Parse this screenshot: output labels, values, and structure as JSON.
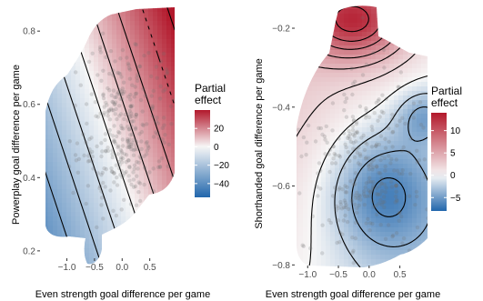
{
  "chart_data": [
    {
      "type": "heatmap",
      "subtype": "contour",
      "xlabel": "Even strength goal difference per game",
      "ylabel": "Powerplay goal difference per game",
      "xticks": [
        -1.0,
        -0.5,
        0.0,
        0.5
      ],
      "xtick_labels": [
        "−1.0",
        "−0.5",
        "0.0",
        "0.5"
      ],
      "yticks": [
        0.2,
        0.4,
        0.6,
        0.8
      ],
      "ytick_labels": [
        "0.2",
        "0.4",
        "0.6",
        "0.8"
      ],
      "xlim": [
        -1.42,
        0.95
      ],
      "ylim": [
        0.155,
        0.865
      ],
      "legend": {
        "title_lines": [
          "Partial",
          "effect"
        ],
        "ticks": [
          20,
          0,
          -20,
          -40
        ],
        "tick_labels": [
          "20",
          "0",
          "−20",
          "−40"
        ],
        "range": [
          -55,
          40
        ],
        "placement": "right"
      },
      "effect_surface": {
        "intercept": 0,
        "x_coef": 45,
        "y_coef": -25
      },
      "contour_levels": [
        -50,
        -40,
        -30,
        -20,
        -10,
        0,
        10,
        20,
        30,
        40
      ],
      "colors": {
        "low": "#2166ac",
        "mid": "#f7f7f7",
        "high": "#b2182b"
      },
      "grid": false,
      "points_visible": true
    },
    {
      "type": "heatmap",
      "subtype": "contour",
      "xlabel": "Even strength goal difference per game",
      "ylabel": "Shorthanded goal difference per game",
      "xticks": [
        -1.0,
        -0.5,
        0.0,
        0.5
      ],
      "xtick_labels": [
        "−1.0",
        "−0.5",
        "0.0",
        "0.5"
      ],
      "yticks": [
        -0.8,
        -0.6,
        -0.4,
        -0.2
      ],
      "ytick_labels": [
        "−0.8",
        "−0.6",
        "−0.4",
        "−0.2"
      ],
      "xlim": [
        -1.3,
        0.95
      ],
      "ylim": [
        -0.82,
        -0.14
      ],
      "legend": {
        "title_lines": [
          "Partial",
          "effect"
        ],
        "ticks": [
          10,
          5,
          0,
          -5
        ],
        "tick_labels": [
          "10",
          "5",
          "0",
          "−5"
        ],
        "range": [
          -8,
          14
        ],
        "placement": "right"
      },
      "contour_levels": [
        -6,
        -4,
        -2,
        0,
        2,
        4,
        6,
        8,
        10,
        12
      ],
      "colors": {
        "low": "#2166ac",
        "mid": "#f7f7f7",
        "high": "#b2182b"
      },
      "grid": false,
      "points_visible": true
    }
  ]
}
